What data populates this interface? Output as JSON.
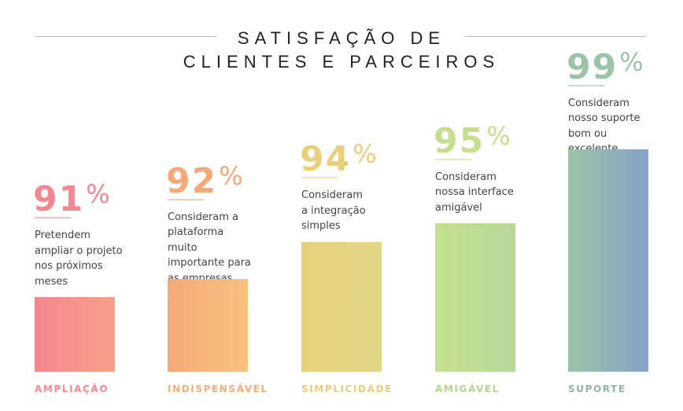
{
  "chart_data": {
    "type": "bar",
    "title_lines": [
      "SATISFAÇÃO DE",
      "CLIENTES E PARCEIROS"
    ],
    "unit_sign": "%",
    "categories": [
      "AMPLIAÇÃO",
      "INDISPENSÁVEL",
      "SIMPLICIDADE",
      "AMIGÁVEL",
      "SUPORTE"
    ],
    "values": [
      91,
      92,
      94,
      95,
      99
    ],
    "value_labels": [
      "91",
      "92",
      "94",
      "95",
      "99"
    ],
    "descriptions": [
      [
        "Pretendem",
        "ampliar o projeto",
        "nos próximos",
        "meses"
      ],
      [
        "Consideram a",
        "plataforma muito",
        "importante para",
        "as empresas"
      ],
      [
        "Consideram",
        "a integração",
        "simples"
      ],
      [
        "Consideram",
        "nossa interface",
        "amigável"
      ],
      [
        "Consideram",
        "nosso suporte",
        "bom ou excelente"
      ]
    ],
    "colors": [
      {
        "main": "#f4878f",
        "light": "#f7a08a",
        "label": "#f48a8e"
      },
      {
        "main": "#f6a978",
        "light": "#f7c27f",
        "label": "#f5ad7c"
      },
      {
        "main": "#e7d07c",
        "light": "#dfd687",
        "label": "#e8cd7e"
      },
      {
        "main": "#c6df8f",
        "light": "#b7d99c",
        "label": "#b3d493"
      },
      {
        "main": "#9dc3a6",
        "light": "#84a3c9",
        "label": "#8fb4a8"
      }
    ],
    "grid": false,
    "legend": "none"
  }
}
